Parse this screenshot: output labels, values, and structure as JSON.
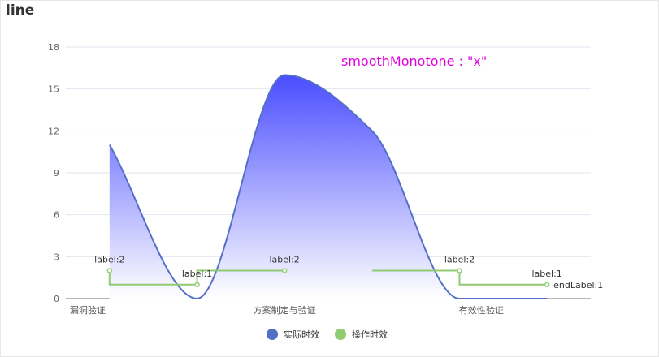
{
  "page": {
    "title": "line"
  },
  "chart_data": {
    "type": "line",
    "title": "line",
    "annotation": "smoothMonotone : \"x\"",
    "ylim": [
      0,
      18
    ],
    "yticks": [
      0,
      3,
      6,
      9,
      12,
      15,
      18
    ],
    "xlim": [
      0,
      6
    ],
    "categories": [
      {
        "label": "漏洞验证",
        "x": 0.25
      },
      {
        "label": "方案制定与验证",
        "x": 2.5
      },
      {
        "label": "有效性验证",
        "x": 4.75
      }
    ],
    "grid": true,
    "legend_position": "bottom",
    "series": [
      {
        "name": "实际时效",
        "color": "#5470c6",
        "style": "smooth-area",
        "area_gradient": [
          "#4a4dff",
          "#ffffff"
        ],
        "points": [
          [
            0.5,
            11
          ],
          [
            1.5,
            0
          ],
          [
            2.5,
            16
          ],
          [
            3.5,
            12
          ],
          [
            4.5,
            0
          ],
          [
            5.5,
            0
          ]
        ]
      },
      {
        "name": "操作时效",
        "color": "#91cc75",
        "style": "step",
        "segments": [
          [
            [
              0.5,
              2
            ],
            [
              0.5,
              1
            ],
            [
              1.5,
              1
            ]
          ],
          [
            [
              1.5,
              1
            ],
            [
              1.5,
              2
            ],
            [
              2.5,
              2
            ]
          ],
          [
            [
              3.5,
              2
            ],
            [
              4.5,
              2
            ],
            [
              4.5,
              1
            ],
            [
              5.5,
              1
            ]
          ]
        ],
        "markers": [
          {
            "x": 0.5,
            "y": 2,
            "label": "label:2"
          },
          {
            "x": 1.5,
            "y": 1,
            "label": "label:1"
          },
          {
            "x": 2.5,
            "y": 2,
            "label": "label:2"
          },
          {
            "x": 4.5,
            "y": 2,
            "label": "label:2"
          },
          {
            "x": 5.5,
            "y": 1,
            "label": "label:1",
            "end_label": "endLabel:1"
          }
        ]
      }
    ]
  }
}
